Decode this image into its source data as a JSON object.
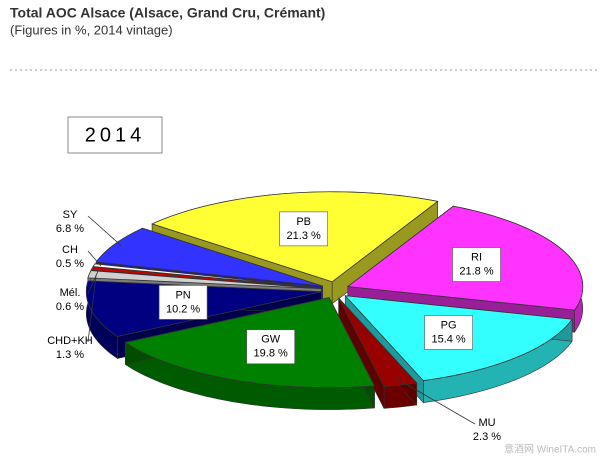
{
  "chart_data": {
    "type": "pie",
    "title": "Total AOC Alsace (Alsace, Grand Cru, Crémant)",
    "subtitle": "(Figures in %, 2014 vintage)",
    "annotation": "2014",
    "watermark": "意酒网 WineITA.com",
    "categories": [
      "PB",
      "RI",
      "PG",
      "MU",
      "GW",
      "PN",
      "CHD+KH",
      "Mél.",
      "CH",
      "SY"
    ],
    "values": [
      21.3,
      21.8,
      15.4,
      2.3,
      19.8,
      10.2,
      1.3,
      0.6,
      0.5,
      6.8
    ],
    "value_labels": [
      "21.3 %",
      "21.8 %",
      "15.4 %",
      "2.3 %",
      "19.8 %",
      "10.2 %",
      "1.3 %",
      "0.6 %",
      "0.5 %",
      "6.8 %"
    ],
    "colors": [
      "#ffff33",
      "#ff33ff",
      "#33ffff",
      "#990000",
      "#008000",
      "#000080",
      "#d0d0d0",
      "#cc0000",
      "#ffffff",
      "#3333ff"
    ]
  }
}
